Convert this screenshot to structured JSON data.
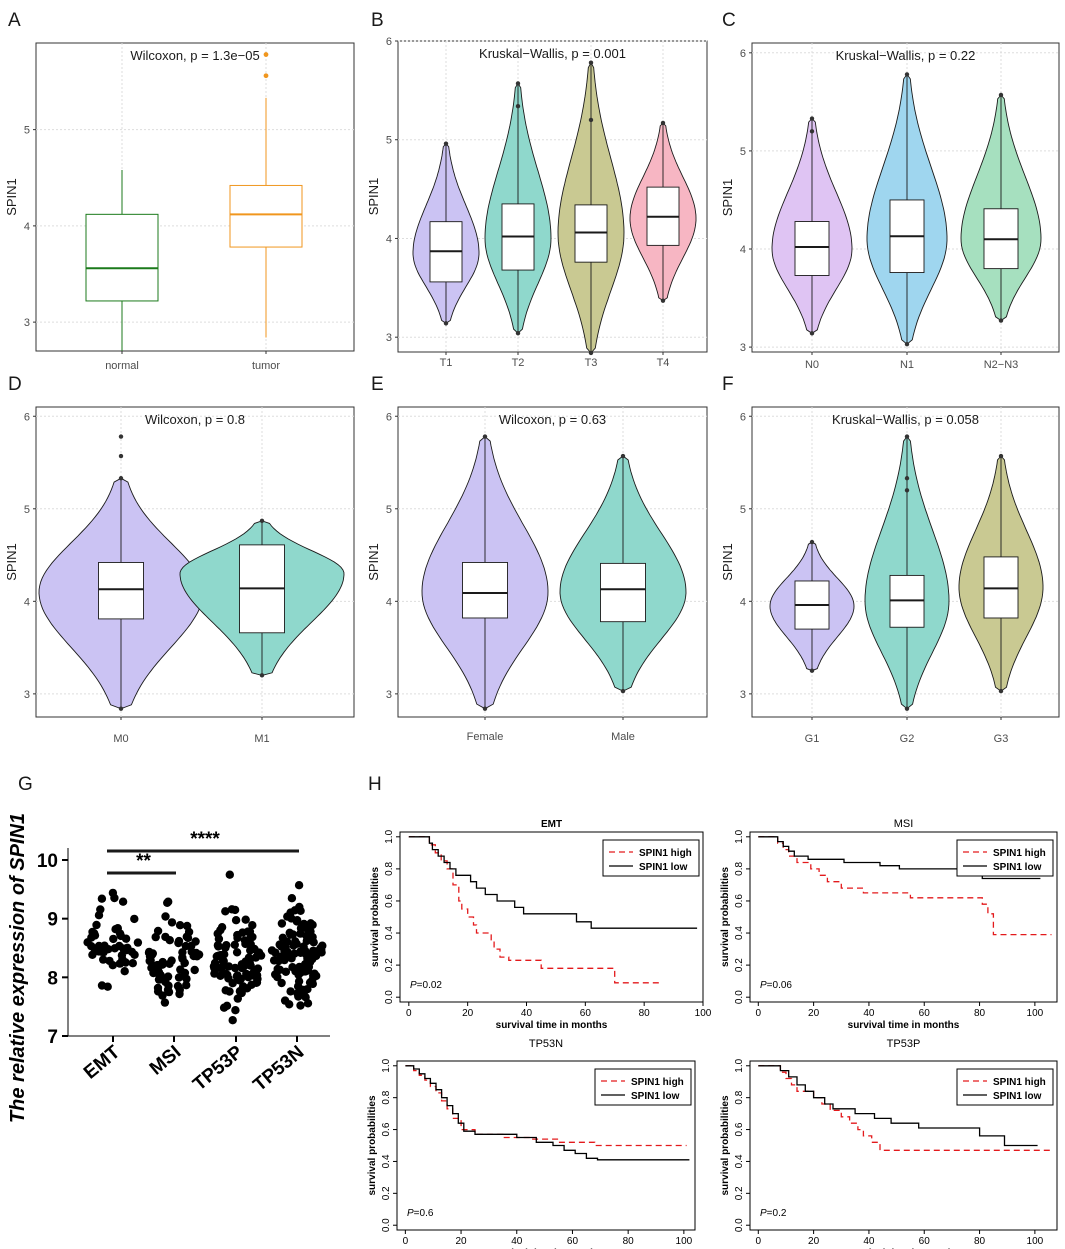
{
  "panel_letters": [
    "A",
    "B",
    "C",
    "D",
    "E",
    "F",
    "G",
    "H"
  ],
  "chart_data": [
    {
      "id": "A",
      "type": "box",
      "title": "Wilcoxon, p = 1.3e−05",
      "ylabel": "SPIN1",
      "ylim": [
        2.7,
        5.9
      ],
      "yticks": [
        3,
        4,
        5
      ],
      "categories": [
        "normal",
        "tumor"
      ],
      "groups": [
        {
          "name": "normal",
          "color": "#1b7a1b",
          "fill": "#ffffff",
          "min": 2.7,
          "q1": 3.22,
          "median": 3.56,
          "q3": 4.12,
          "max": 4.58,
          "outliers": []
        },
        {
          "name": "tumor",
          "color": "#f0961e",
          "fill": "#ffffff",
          "min": 2.84,
          "q1": 3.78,
          "median": 4.12,
          "q3": 4.42,
          "max": 5.33,
          "outliers": [
            5.56,
            5.78
          ]
        }
      ]
    },
    {
      "id": "B",
      "type": "violin",
      "title": "Kruskal−Wallis, p = 0.001",
      "ylabel": "SPIN1",
      "ylim": [
        2.85,
        6.0
      ],
      "yticks": [
        3,
        4,
        5,
        6
      ],
      "categories": [
        "T1",
        "T2",
        "T3",
        "T4"
      ],
      "groups": [
        {
          "name": "T1",
          "fill": "#cbc3f3",
          "min": 3.14,
          "q1": 3.56,
          "median": 3.87,
          "q3": 4.17,
          "max": 4.96,
          "peak": 3.85,
          "outliers": []
        },
        {
          "name": "T2",
          "fill": "#8fd8cc",
          "min": 3.04,
          "q1": 3.68,
          "median": 4.02,
          "q3": 4.35,
          "max": 5.57,
          "peak": 4.0,
          "outliers": [
            5.34
          ]
        },
        {
          "name": "T3",
          "fill": "#c9c992",
          "min": 2.84,
          "q1": 3.76,
          "median": 4.06,
          "q3": 4.34,
          "max": 5.78,
          "peak": 4.05,
          "outliers": [
            5.2
          ]
        },
        {
          "name": "T4",
          "fill": "#f7b6c3",
          "min": 3.37,
          "q1": 3.93,
          "median": 4.22,
          "q3": 4.52,
          "max": 5.17,
          "peak": 4.2,
          "outliers": []
        }
      ]
    },
    {
      "id": "C",
      "type": "violin",
      "title": "Kruskal−Wallis, p = 0.22",
      "ylabel": "SPIN1",
      "ylim": [
        2.95,
        6.1
      ],
      "yticks": [
        3,
        4,
        5,
        6
      ],
      "categories": [
        "N0",
        "N1",
        "N2−N3"
      ],
      "groups": [
        {
          "name": "N0",
          "fill": "#dfc4f3",
          "min": 3.14,
          "q1": 3.73,
          "median": 4.02,
          "q3": 4.28,
          "max": 5.33,
          "peak": 4.0,
          "outliers": [
            5.2
          ]
        },
        {
          "name": "N1",
          "fill": "#9fd6ef",
          "min": 3.03,
          "q1": 3.76,
          "median": 4.13,
          "q3": 4.5,
          "max": 5.78,
          "peak": 4.1,
          "outliers": []
        },
        {
          "name": "N2−N3",
          "fill": "#a6e0bf",
          "min": 3.27,
          "q1": 3.8,
          "median": 4.1,
          "q3": 4.41,
          "max": 5.57,
          "peak": 4.1,
          "outliers": []
        }
      ]
    },
    {
      "id": "D",
      "type": "violin",
      "title": "Wilcoxon, p = 0.8",
      "ylabel": "SPIN1",
      "ylim": [
        2.75,
        6.1
      ],
      "yticks": [
        3,
        4,
        5,
        6
      ],
      "categories": [
        "M0",
        "M1"
      ],
      "groups": [
        {
          "name": "M0",
          "fill": "#cbc3f3",
          "min": 2.84,
          "q1": 3.81,
          "median": 4.13,
          "q3": 4.42,
          "max": 5.33,
          "peak": 4.1,
          "outliers": [
            5.57,
            5.78
          ]
        },
        {
          "name": "M1",
          "fill": "#8fd8cc",
          "min": 3.2,
          "q1": 3.66,
          "median": 4.14,
          "q3": 4.61,
          "max": 4.87,
          "peak": 4.3,
          "outliers": []
        }
      ]
    },
    {
      "id": "E",
      "type": "violin",
      "title": "Wilcoxon, p = 0.63",
      "ylabel": "SPIN1",
      "ylim": [
        2.75,
        6.1
      ],
      "yticks": [
        3,
        4,
        5,
        6
      ],
      "categories": [
        "Female",
        "Male"
      ],
      "groups": [
        {
          "name": "Female",
          "fill": "#cbc3f3",
          "min": 2.84,
          "q1": 3.82,
          "median": 4.09,
          "q3": 4.42,
          "max": 5.78,
          "peak": 4.1,
          "outliers": []
        },
        {
          "name": "Male",
          "fill": "#8fd8cc",
          "min": 3.03,
          "q1": 3.78,
          "median": 4.13,
          "q3": 4.41,
          "max": 5.57,
          "peak": 4.1,
          "outliers": []
        }
      ]
    },
    {
      "id": "F",
      "type": "violin",
      "title": "Kruskal−Wallis, p = 0.058",
      "ylabel": "SPIN1",
      "ylim": [
        2.75,
        6.1
      ],
      "yticks": [
        3,
        4,
        5,
        6
      ],
      "categories": [
        "G1",
        "G2",
        "G3"
      ],
      "groups": [
        {
          "name": "G1",
          "fill": "#cbc3f3",
          "min": 3.25,
          "q1": 3.7,
          "median": 3.96,
          "q3": 4.22,
          "max": 4.64,
          "peak": 3.95,
          "outliers": []
        },
        {
          "name": "G2",
          "fill": "#8fd8cc",
          "min": 2.84,
          "q1": 3.72,
          "median": 4.01,
          "q3": 4.28,
          "max": 5.78,
          "peak": 4.0,
          "outliers": [
            5.2,
            5.33
          ]
        },
        {
          "name": "G3",
          "fill": "#c9c992",
          "min": 3.03,
          "q1": 3.82,
          "median": 4.14,
          "q3": 4.48,
          "max": 5.57,
          "peak": 4.15,
          "outliers": []
        }
      ]
    },
    {
      "id": "G",
      "type": "scatter",
      "ylabel": "The relative expression of  SPIN1",
      "ylim": [
        7,
        10
      ],
      "yticks": [
        7,
        8,
        9,
        10
      ],
      "categories": [
        "EMT",
        "MSI",
        "TP53P",
        "TP53N"
      ],
      "groups": [
        {
          "name": "EMT",
          "n": 50,
          "min": 7.84,
          "max": 9.44,
          "center": 8.65,
          "sd": 0.35,
          "seed": 11
        },
        {
          "name": "MSI",
          "n": 70,
          "min": 7.57,
          "max": 9.29,
          "center": 8.3,
          "sd": 0.35,
          "seed": 23
        },
        {
          "name": "TP53P",
          "n": 90,
          "min": 7.27,
          "max": 9.75,
          "center": 8.3,
          "sd": 0.38,
          "seed": 37
        },
        {
          "name": "TP53N",
          "n": 110,
          "min": 7.52,
          "max": 9.57,
          "center": 8.4,
          "sd": 0.38,
          "seed": 53
        }
      ],
      "brackets": [
        {
          "from": "EMT",
          "to": "MSI",
          "label": "**"
        },
        {
          "from": "EMT",
          "to": "TP53N",
          "label": "****"
        }
      ]
    },
    {
      "id": "H1",
      "type": "line",
      "title": "EMT",
      "pvalue": "=0.02",
      "xlabel": "survival time in months",
      "ylabel": "survival probabilities",
      "xlim": [
        -3,
        100
      ],
      "ylim": [
        -0.03,
        1.03
      ],
      "xticks": [
        0,
        20,
        40,
        60,
        80,
        100
      ],
      "yticks": [
        0.0,
        0.2,
        0.4,
        0.6,
        0.8,
        1.0
      ],
      "legend": [
        "SPIN1 high",
        "SPIN1 low"
      ],
      "series": [
        {
          "name": "SPIN1 high",
          "color": "#e31a1c",
          "dash": true,
          "end": 86,
          "steps": [
            [
              0,
              1
            ],
            [
              7,
              0.95
            ],
            [
              9,
              0.9
            ],
            [
              11,
              0.85
            ],
            [
              13,
              0.8
            ],
            [
              15,
              0.7
            ],
            [
              17,
              0.6
            ],
            [
              18,
              0.55
            ],
            [
              20,
              0.5
            ],
            [
              22,
              0.45
            ],
            [
              23,
              0.4
            ],
            [
              28,
              0.35
            ],
            [
              29,
              0.3
            ],
            [
              31,
              0.25
            ],
            [
              34,
              0.23
            ],
            [
              45,
              0.18
            ],
            [
              70,
              0.09
            ]
          ]
        },
        {
          "name": "SPIN1 low",
          "color": "#000000",
          "dash": false,
          "end": 98,
          "steps": [
            [
              0,
              1
            ],
            [
              7,
              0.96
            ],
            [
              8,
              0.92
            ],
            [
              10,
              0.88
            ],
            [
              12,
              0.84
            ],
            [
              14,
              0.8
            ],
            [
              16,
              0.76
            ],
            [
              21,
              0.72
            ],
            [
              23,
              0.68
            ],
            [
              26,
              0.64
            ],
            [
              30,
              0.6
            ],
            [
              36,
              0.56
            ],
            [
              39,
              0.52
            ],
            [
              57,
              0.47
            ],
            [
              62,
              0.43
            ]
          ]
        }
      ]
    },
    {
      "id": "H2",
      "type": "line",
      "title": "MSI",
      "pvalue": "=0.06",
      "xlabel": "survival time in months",
      "ylabel": "survival probabilities",
      "xlim": [
        -3,
        108
      ],
      "ylim": [
        -0.03,
        1.03
      ],
      "xticks": [
        0,
        20,
        40,
        60,
        80,
        100
      ],
      "yticks": [
        0.0,
        0.2,
        0.4,
        0.6,
        0.8,
        1.0
      ],
      "legend": [
        "SPIN1 high",
        "SPIN1 low"
      ],
      "series": [
        {
          "name": "SPIN1 high",
          "color": "#e31a1c",
          "dash": true,
          "end": 106,
          "steps": [
            [
              0,
              1
            ],
            [
              7,
              0.96
            ],
            [
              9,
              0.92
            ],
            [
              11,
              0.88
            ],
            [
              14,
              0.84
            ],
            [
              19,
              0.8
            ],
            [
              22,
              0.76
            ],
            [
              25,
              0.72
            ],
            [
              30,
              0.68
            ],
            [
              38,
              0.65
            ],
            [
              55,
              0.62
            ],
            [
              81,
              0.58
            ],
            [
              83,
              0.52
            ],
            [
              85,
              0.39
            ]
          ]
        },
        {
          "name": "SPIN1 low",
          "color": "#000000",
          "dash": false,
          "end": 102,
          "steps": [
            [
              0,
              1
            ],
            [
              7,
              0.97
            ],
            [
              9,
              0.94
            ],
            [
              11,
              0.91
            ],
            [
              13,
              0.88
            ],
            [
              18,
              0.86
            ],
            [
              31,
              0.84
            ],
            [
              44,
              0.82
            ],
            [
              51,
              0.8
            ],
            [
              81,
              0.74
            ]
          ]
        }
      ]
    },
    {
      "id": "H3",
      "type": "line",
      "title": "TP53N",
      "pvalue": "=0.6",
      "xlabel": "survival time in months",
      "ylabel": "survival probabilities",
      "xlim": [
        -3,
        104
      ],
      "ylim": [
        -0.03,
        1.03
      ],
      "xticks": [
        0,
        20,
        40,
        60,
        80,
        100
      ],
      "yticks": [
        0.0,
        0.2,
        0.4,
        0.6,
        0.8,
        1.0
      ],
      "legend": [
        "SPIN1 high",
        "SPIN1 low"
      ],
      "series": [
        {
          "name": "SPIN1 high",
          "color": "#e31a1c",
          "dash": true,
          "end": 101,
          "steps": [
            [
              0,
              1
            ],
            [
              3,
              0.97
            ],
            [
              5,
              0.94
            ],
            [
              7,
              0.91
            ],
            [
              9,
              0.87
            ],
            [
              11,
              0.83
            ],
            [
              13,
              0.78
            ],
            [
              15,
              0.73
            ],
            [
              17,
              0.67
            ],
            [
              20,
              0.6
            ],
            [
              25,
              0.57
            ],
            [
              35,
              0.55
            ],
            [
              45,
              0.54
            ],
            [
              55,
              0.52
            ],
            [
              68,
              0.5
            ]
          ]
        },
        {
          "name": "SPIN1 low",
          "color": "#000000",
          "dash": false,
          "end": 102,
          "steps": [
            [
              0,
              1
            ],
            [
              3,
              0.98
            ],
            [
              5,
              0.95
            ],
            [
              7,
              0.92
            ],
            [
              9,
              0.89
            ],
            [
              11,
              0.85
            ],
            [
              13,
              0.8
            ],
            [
              15,
              0.75
            ],
            [
              17,
              0.7
            ],
            [
              19,
              0.64
            ],
            [
              21,
              0.59
            ],
            [
              25,
              0.57
            ],
            [
              40,
              0.55
            ],
            [
              47,
              0.52
            ],
            [
              53,
              0.5
            ],
            [
              57,
              0.47
            ],
            [
              61,
              0.45
            ],
            [
              65,
              0.42
            ],
            [
              69,
              0.41
            ]
          ]
        }
      ]
    },
    {
      "id": "H4",
      "type": "line",
      "title": "TP53P",
      "pvalue": "=0.2",
      "xlabel": "survival time in months",
      "ylabel": "survival probabilities",
      "xlim": [
        -3,
        108
      ],
      "ylim": [
        -0.03,
        1.03
      ],
      "xticks": [
        0,
        20,
        40,
        60,
        80,
        100
      ],
      "yticks": [
        0.0,
        0.2,
        0.4,
        0.6,
        0.8,
        1.0
      ],
      "legend": [
        "SPIN1 high",
        "SPIN1 low"
      ],
      "series": [
        {
          "name": "SPIN1 high",
          "color": "#e31a1c",
          "dash": true,
          "end": 106,
          "steps": [
            [
              0,
              1
            ],
            [
              8,
              0.96
            ],
            [
              10,
              0.92
            ],
            [
              12,
              0.88
            ],
            [
              14,
              0.84
            ],
            [
              20,
              0.8
            ],
            [
              23,
              0.76
            ],
            [
              26,
              0.72
            ],
            [
              30,
              0.68
            ],
            [
              33,
              0.64
            ],
            [
              36,
              0.6
            ],
            [
              38,
              0.56
            ],
            [
              41,
              0.52
            ],
            [
              44,
              0.47
            ]
          ]
        },
        {
          "name": "SPIN1 low",
          "color": "#000000",
          "dash": false,
          "end": 101,
          "steps": [
            [
              0,
              1
            ],
            [
              8,
              0.97
            ],
            [
              11,
              0.93
            ],
            [
              14,
              0.88
            ],
            [
              17,
              0.84
            ],
            [
              20,
              0.8
            ],
            [
              24,
              0.76
            ],
            [
              27,
              0.73
            ],
            [
              35,
              0.7
            ],
            [
              42,
              0.67
            ],
            [
              48,
              0.64
            ],
            [
              58,
              0.61
            ],
            [
              80,
              0.56
            ],
            [
              89,
              0.5
            ]
          ]
        }
      ]
    }
  ]
}
